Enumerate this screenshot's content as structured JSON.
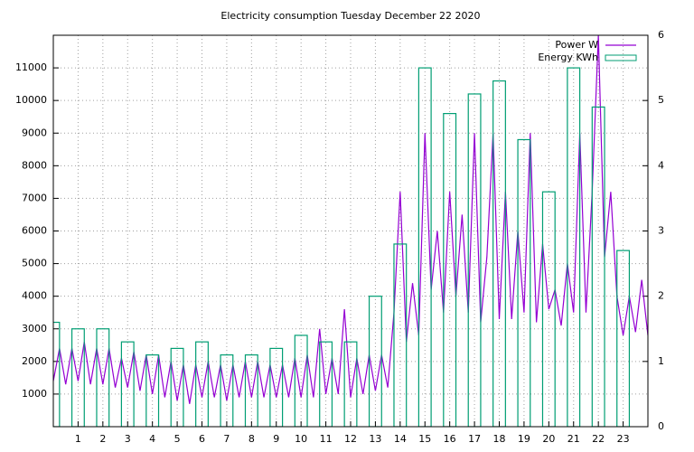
{
  "chart_data": {
    "type": "line",
    "title": "Electricity consumption Tuesday December 22 2020",
    "xlim": [
      0,
      24
    ],
    "xticks": [
      1,
      2,
      3,
      4,
      5,
      6,
      7,
      8,
      9,
      10,
      11,
      12,
      13,
      14,
      15,
      16,
      17,
      18,
      19,
      20,
      21,
      22,
      23
    ],
    "ylim": [
      0,
      12000
    ],
    "yticks": [
      1000,
      2000,
      3000,
      4000,
      5000,
      6000,
      7000,
      8000,
      9000,
      10000,
      11000
    ],
    "y2lim": [
      0,
      6
    ],
    "y2ticks": [
      0,
      1,
      2,
      3,
      4,
      5,
      6
    ],
    "grid": true,
    "legend": "top-right",
    "series": [
      {
        "name": "Power W",
        "color": "#9400d3",
        "style": "lines",
        "x": [
          0,
          0.25,
          0.5,
          0.75,
          1,
          1.25,
          1.5,
          1.75,
          2,
          2.25,
          2.5,
          2.75,
          3,
          3.25,
          3.5,
          3.75,
          4,
          4.25,
          4.5,
          4.75,
          5,
          5.25,
          5.5,
          5.75,
          6,
          6.25,
          6.5,
          6.75,
          7,
          7.25,
          7.5,
          7.75,
          8,
          8.25,
          8.5,
          8.75,
          9,
          9.25,
          9.5,
          9.75,
          10,
          10.25,
          10.5,
          10.75,
          11,
          11.25,
          11.5,
          11.75,
          12,
          12.25,
          12.5,
          12.75,
          13,
          13.25,
          13.5,
          13.75,
          14,
          14.25,
          14.5,
          14.75,
          15,
          15.25,
          15.5,
          15.75,
          16,
          16.25,
          16.5,
          16.75,
          17,
          17.25,
          17.5,
          17.75,
          18,
          18.25,
          18.5,
          18.75,
          19,
          19.25,
          19.5,
          19.75,
          20,
          20.25,
          20.5,
          20.75,
          21,
          21.25,
          21.5,
          21.75,
          22,
          22.25,
          22.5,
          22.75,
          23,
          23.25,
          23.5,
          23.75,
          24
        ],
        "values": [
          1400,
          2400,
          1300,
          2400,
          1400,
          2600,
          1300,
          2400,
          1300,
          2400,
          1200,
          2100,
          1200,
          2300,
          1100,
          2200,
          1000,
          2200,
          900,
          2000,
          800,
          1900,
          700,
          1900,
          900,
          2000,
          900,
          1900,
          800,
          1900,
          900,
          2000,
          900,
          2000,
          900,
          1900,
          900,
          1900,
          900,
          2100,
          900,
          2200,
          900,
          3000,
          1000,
          2100,
          1000,
          3600,
          900,
          2100,
          1000,
          2200,
          1100,
          2200,
          1200,
          3500,
          7200,
          2600,
          4400,
          2800,
          9000,
          4200,
          6000,
          3500,
          7200,
          4000,
          6500,
          3500,
          9000,
          3200,
          5200,
          9000,
          3300,
          7200,
          3300,
          6000,
          3500,
          9000,
          3200,
          5600,
          3600,
          4200,
          3100,
          5000,
          3500,
          9000,
          3500,
          7200,
          12000,
          5200,
          7200,
          4000,
          2800,
          4000,
          2900,
          4500,
          2800
        ]
      },
      {
        "name": "Energy KWh",
        "color": "#009e73",
        "style": "boxes",
        "axis": "y2",
        "x": [
          0,
          1,
          2,
          3,
          4,
          5,
          6,
          7,
          8,
          9,
          10,
          11,
          12,
          13,
          14,
          15,
          16,
          17,
          18,
          19,
          20,
          21,
          22,
          23
        ],
        "values": [
          1.6,
          1.5,
          1.5,
          1.3,
          1.1,
          1.2,
          1.3,
          1.1,
          1.1,
          1.2,
          1.4,
          1.3,
          1.3,
          2.0,
          2.8,
          5.5,
          4.8,
          5.1,
          5.3,
          4.4,
          3.6,
          5.5,
          4.9,
          2.7
        ]
      }
    ]
  }
}
